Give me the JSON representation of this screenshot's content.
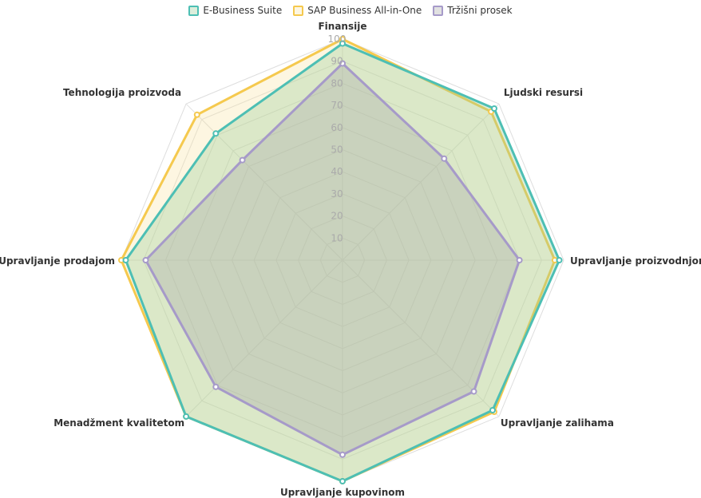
{
  "chart_data": {
    "type": "radar",
    "title": "",
    "categories": [
      "Finansije",
      "Ljudski resursi",
      "Upravljanje proizvodnjom",
      "Upravljanje zalihama",
      "Upravljanje kupovinom",
      "Menadžment kvalitetom",
      "Upravljanje prodajom",
      "Tehnologija proizvoda"
    ],
    "range": [
      0,
      100
    ],
    "ticks": [
      10,
      20,
      30,
      40,
      50,
      60,
      70,
      80,
      90,
      100
    ],
    "grid": true,
    "legend_position": "top",
    "series": [
      {
        "name": "E-Business Suite",
        "values": [
          98,
          97,
          98,
          96,
          100,
          100,
          98,
          81
        ],
        "stroke": "#4dbfb4",
        "fill": "rgba(155,205,155,0.35)"
      },
      {
        "name": "SAP Business All-in-One",
        "values": [
          100,
          95,
          96,
          97,
          100,
          100,
          100,
          93
        ],
        "stroke": "#f5c94e",
        "fill": "rgba(248,212,120,0.22)"
      },
      {
        "name": "Tržišni prosek",
        "values": [
          89,
          65,
          80,
          84,
          88,
          81,
          89,
          64
        ],
        "stroke": "#a69ac9",
        "fill": "rgba(170,170,170,0.35)"
      }
    ]
  }
}
